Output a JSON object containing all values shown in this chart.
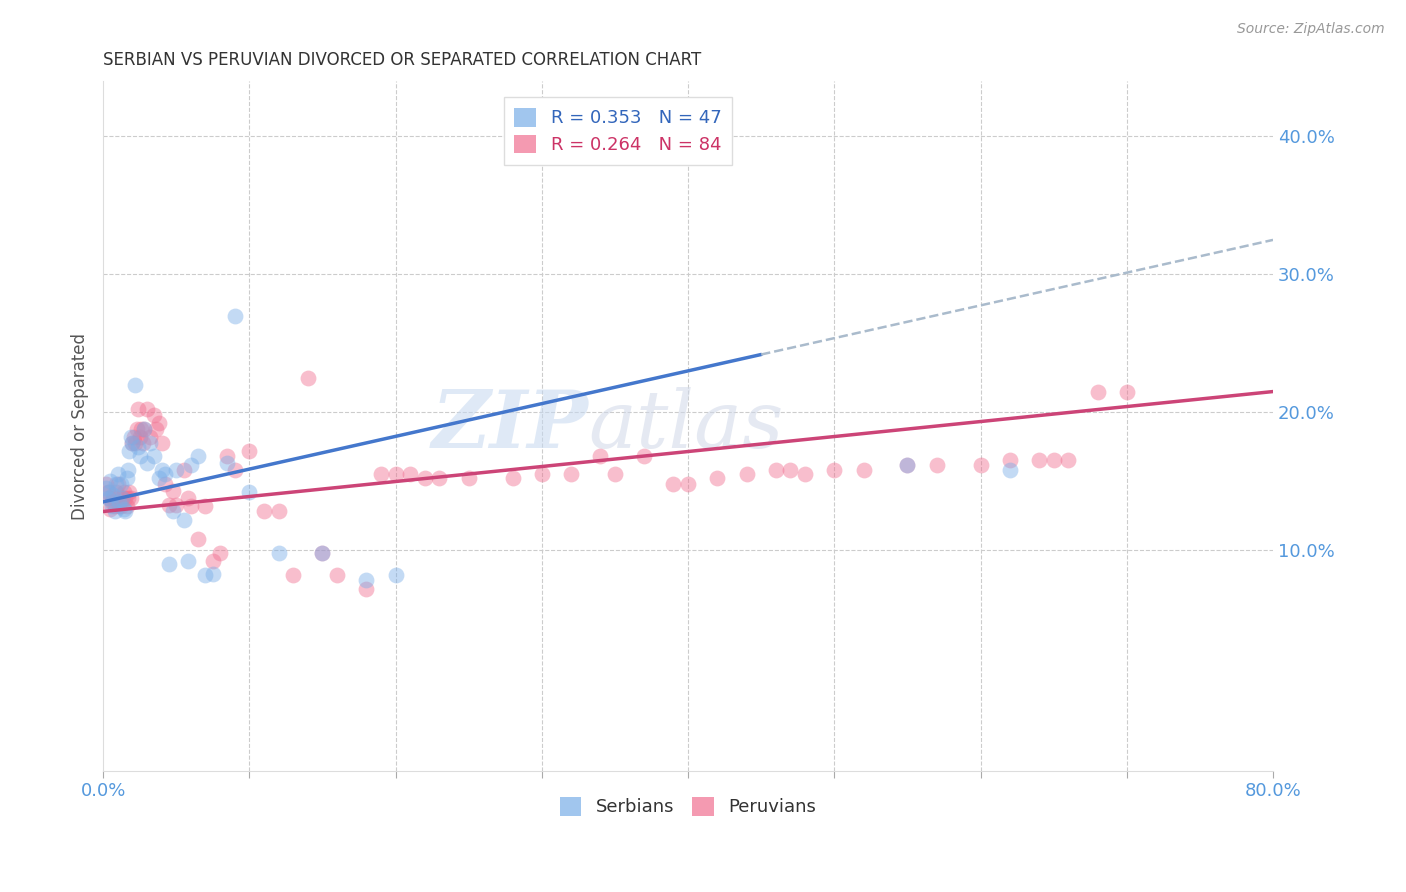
{
  "title": "SERBIAN VS PERUVIAN DIVORCED OR SEPARATED CORRELATION CHART",
  "source": "Source: ZipAtlas.com",
  "ylabel_label": "Divorced or Separated",
  "legend_entries": [
    {
      "label": "R = 0.353   N = 47",
      "color": "#7aaee8"
    },
    {
      "label": "R = 0.264   N = 84",
      "color": "#f07090"
    }
  ],
  "xlim": [
    0.0,
    0.8
  ],
  "ylim": [
    -0.06,
    0.44
  ],
  "serbian_points": [
    [
      0.002,
      0.145
    ],
    [
      0.003,
      0.138
    ],
    [
      0.004,
      0.142
    ],
    [
      0.005,
      0.15
    ],
    [
      0.006,
      0.132
    ],
    [
      0.007,
      0.14
    ],
    [
      0.008,
      0.128
    ],
    [
      0.009,
      0.148
    ],
    [
      0.01,
      0.155
    ],
    [
      0.011,
      0.135
    ],
    [
      0.012,
      0.148
    ],
    [
      0.013,
      0.138
    ],
    [
      0.014,
      0.13
    ],
    [
      0.015,
      0.128
    ],
    [
      0.016,
      0.152
    ],
    [
      0.017,
      0.158
    ],
    [
      0.018,
      0.172
    ],
    [
      0.019,
      0.182
    ],
    [
      0.02,
      0.178
    ],
    [
      0.022,
      0.22
    ],
    [
      0.024,
      0.175
    ],
    [
      0.025,
      0.168
    ],
    [
      0.028,
      0.188
    ],
    [
      0.03,
      0.163
    ],
    [
      0.032,
      0.178
    ],
    [
      0.035,
      0.168
    ],
    [
      0.038,
      0.152
    ],
    [
      0.04,
      0.158
    ],
    [
      0.042,
      0.155
    ],
    [
      0.045,
      0.09
    ],
    [
      0.048,
      0.128
    ],
    [
      0.05,
      0.158
    ],
    [
      0.055,
      0.122
    ],
    [
      0.058,
      0.092
    ],
    [
      0.06,
      0.162
    ],
    [
      0.065,
      0.168
    ],
    [
      0.07,
      0.082
    ],
    [
      0.075,
      0.083
    ],
    [
      0.085,
      0.163
    ],
    [
      0.09,
      0.27
    ],
    [
      0.1,
      0.142
    ],
    [
      0.12,
      0.098
    ],
    [
      0.15,
      0.098
    ],
    [
      0.18,
      0.078
    ],
    [
      0.2,
      0.082
    ],
    [
      0.55,
      0.162
    ],
    [
      0.62,
      0.158
    ]
  ],
  "peruvian_points": [
    [
      0.002,
      0.148
    ],
    [
      0.003,
      0.142
    ],
    [
      0.004,
      0.138
    ],
    [
      0.005,
      0.13
    ],
    [
      0.006,
      0.135
    ],
    [
      0.007,
      0.138
    ],
    [
      0.008,
      0.132
    ],
    [
      0.009,
      0.142
    ],
    [
      0.01,
      0.148
    ],
    [
      0.011,
      0.132
    ],
    [
      0.012,
      0.132
    ],
    [
      0.013,
      0.138
    ],
    [
      0.014,
      0.142
    ],
    [
      0.015,
      0.138
    ],
    [
      0.016,
      0.132
    ],
    [
      0.017,
      0.138
    ],
    [
      0.018,
      0.142
    ],
    [
      0.019,
      0.138
    ],
    [
      0.02,
      0.178
    ],
    [
      0.021,
      0.182
    ],
    [
      0.022,
      0.178
    ],
    [
      0.023,
      0.188
    ],
    [
      0.024,
      0.202
    ],
    [
      0.025,
      0.182
    ],
    [
      0.026,
      0.188
    ],
    [
      0.027,
      0.178
    ],
    [
      0.028,
      0.188
    ],
    [
      0.03,
      0.202
    ],
    [
      0.032,
      0.182
    ],
    [
      0.035,
      0.198
    ],
    [
      0.036,
      0.188
    ],
    [
      0.038,
      0.192
    ],
    [
      0.04,
      0.178
    ],
    [
      0.042,
      0.148
    ],
    [
      0.045,
      0.133
    ],
    [
      0.048,
      0.143
    ],
    [
      0.05,
      0.133
    ],
    [
      0.055,
      0.158
    ],
    [
      0.058,
      0.138
    ],
    [
      0.06,
      0.132
    ],
    [
      0.065,
      0.108
    ],
    [
      0.07,
      0.132
    ],
    [
      0.075,
      0.092
    ],
    [
      0.08,
      0.098
    ],
    [
      0.085,
      0.168
    ],
    [
      0.09,
      0.158
    ],
    [
      0.1,
      0.172
    ],
    [
      0.11,
      0.128
    ],
    [
      0.12,
      0.128
    ],
    [
      0.13,
      0.082
    ],
    [
      0.14,
      0.225
    ],
    [
      0.15,
      0.098
    ],
    [
      0.16,
      0.082
    ],
    [
      0.18,
      0.072
    ],
    [
      0.19,
      0.155
    ],
    [
      0.2,
      0.155
    ],
    [
      0.21,
      0.155
    ],
    [
      0.22,
      0.152
    ],
    [
      0.23,
      0.152
    ],
    [
      0.25,
      0.152
    ],
    [
      0.28,
      0.152
    ],
    [
      0.3,
      0.155
    ],
    [
      0.32,
      0.155
    ],
    [
      0.34,
      0.168
    ],
    [
      0.35,
      0.155
    ],
    [
      0.37,
      0.168
    ],
    [
      0.39,
      0.148
    ],
    [
      0.4,
      0.148
    ],
    [
      0.42,
      0.152
    ],
    [
      0.44,
      0.155
    ],
    [
      0.46,
      0.158
    ],
    [
      0.47,
      0.158
    ],
    [
      0.48,
      0.155
    ],
    [
      0.5,
      0.158
    ],
    [
      0.52,
      0.158
    ],
    [
      0.55,
      0.162
    ],
    [
      0.57,
      0.162
    ],
    [
      0.6,
      0.162
    ],
    [
      0.62,
      0.165
    ],
    [
      0.64,
      0.165
    ],
    [
      0.65,
      0.165
    ],
    [
      0.66,
      0.165
    ],
    [
      0.68,
      0.215
    ],
    [
      0.7,
      0.215
    ]
  ],
  "serbian_color": "#7aaee8",
  "peruvian_color": "#f07090",
  "serbian_line_color": "#4477cc",
  "peruvian_line_color": "#cc4477",
  "dashed_line_color": "#aabbcc",
  "watermark_zip": "ZIP",
  "watermark_atlas": "atlas",
  "background_color": "#ffffff",
  "grid_color": "#cccccc",
  "serbian_line_x0": 0.0,
  "serbian_line_y0": 0.135,
  "serbian_line_x1": 0.45,
  "serbian_line_y1": 0.255,
  "serbian_line_solid_end": 0.45,
  "serbian_line_dashed_start": 0.45,
  "serbian_line_dashed_end_x": 0.8,
  "serbian_line_dashed_end_y": 0.325,
  "peruvian_line_x0": 0.0,
  "peruvian_line_y0": 0.128,
  "peruvian_line_x1": 0.8,
  "peruvian_line_y1": 0.215
}
